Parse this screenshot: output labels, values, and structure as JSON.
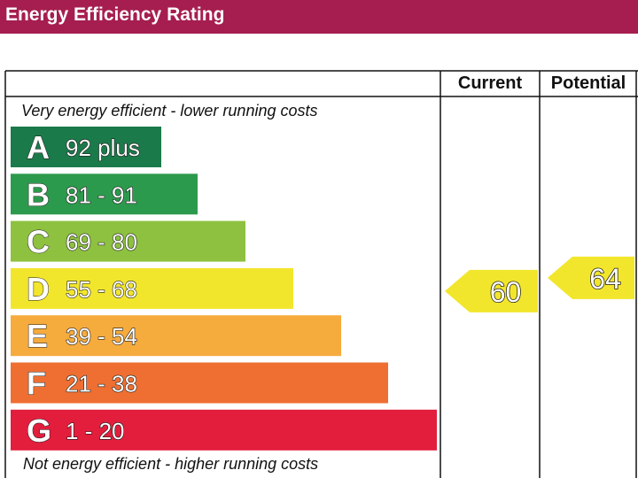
{
  "title": "Energy Efficiency Rating",
  "columns": {
    "current": "Current",
    "potential": "Potential"
  },
  "top_caption": "Very energy efficient - lower running costs",
  "bottom_caption": "Not energy efficient - higher running costs",
  "colors": {
    "title_bar": "#a61e4f",
    "A": "#1b7a4a",
    "B": "#2c9a4c",
    "C": "#8dc13f",
    "D": "#f2e62c",
    "E": "#f6ab3d",
    "F": "#ee6f31",
    "G": "#e21e3c"
  },
  "chart_data": {
    "type": "bar",
    "title": "Energy Efficiency Rating",
    "categories": [
      "A",
      "B",
      "C",
      "D",
      "E",
      "F",
      "G"
    ],
    "ranges": [
      "92 plus",
      "81 - 91",
      "69 - 80",
      "55 - 68",
      "39 - 54",
      "21 - 38",
      "1 - 20"
    ],
    "bands": [
      {
        "letter": "A",
        "range": "92 plus",
        "min": 92,
        "max": 100
      },
      {
        "letter": "B",
        "range": "81 - 91",
        "min": 81,
        "max": 91
      },
      {
        "letter": "C",
        "range": "69 - 80",
        "min": 69,
        "max": 80
      },
      {
        "letter": "D",
        "range": "55 - 68",
        "min": 55,
        "max": 68
      },
      {
        "letter": "E",
        "range": "39 - 54",
        "min": 39,
        "max": 54
      },
      {
        "letter": "F",
        "range": "21 - 38",
        "min": 21,
        "max": 38
      },
      {
        "letter": "G",
        "range": "1 - 20",
        "min": 1,
        "max": 20
      }
    ],
    "series": [
      {
        "name": "Current",
        "value": 60,
        "band": "D"
      },
      {
        "name": "Potential",
        "value": 64,
        "band": "D"
      }
    ]
  }
}
